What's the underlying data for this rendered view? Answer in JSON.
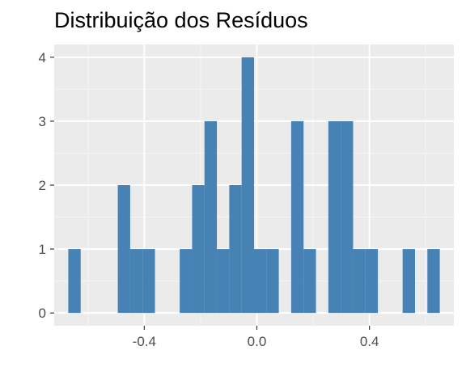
{
  "chart_data": {
    "type": "bar",
    "title": "Distribuição dos Resíduos",
    "xlabel": "",
    "ylabel": "",
    "bin_width": 0.044,
    "bins": [
      {
        "x": -0.648,
        "count": 1
      },
      {
        "x": -0.604,
        "count": 0
      },
      {
        "x": -0.56,
        "count": 0
      },
      {
        "x": -0.516,
        "count": 0
      },
      {
        "x": -0.472,
        "count": 2
      },
      {
        "x": -0.428,
        "count": 1
      },
      {
        "x": -0.384,
        "count": 1
      },
      {
        "x": -0.34,
        "count": 0
      },
      {
        "x": -0.296,
        "count": 0
      },
      {
        "x": -0.252,
        "count": 1
      },
      {
        "x": -0.208,
        "count": 2
      },
      {
        "x": -0.164,
        "count": 3
      },
      {
        "x": -0.12,
        "count": 1
      },
      {
        "x": -0.076,
        "count": 2
      },
      {
        "x": -0.032,
        "count": 4
      },
      {
        "x": 0.012,
        "count": 1
      },
      {
        "x": 0.056,
        "count": 1
      },
      {
        "x": 0.1,
        "count": 0
      },
      {
        "x": 0.144,
        "count": 3
      },
      {
        "x": 0.188,
        "count": 1
      },
      {
        "x": 0.232,
        "count": 0
      },
      {
        "x": 0.276,
        "count": 3
      },
      {
        "x": 0.32,
        "count": 3
      },
      {
        "x": 0.364,
        "count": 1
      },
      {
        "x": 0.408,
        "count": 1
      },
      {
        "x": 0.452,
        "count": 0
      },
      {
        "x": 0.496,
        "count": 0
      },
      {
        "x": 0.54,
        "count": 1
      },
      {
        "x": 0.584,
        "count": 0
      },
      {
        "x": 0.628,
        "count": 1
      }
    ],
    "xlim": [
      -0.72,
      0.7
    ],
    "ylim": [
      -0.2,
      4.2
    ],
    "x_ticks": [
      {
        "value": -0.4,
        "label": "-0.4"
      },
      {
        "value": 0.0,
        "label": "0.0"
      },
      {
        "value": 0.4,
        "label": "0.4"
      }
    ],
    "y_ticks": [
      {
        "value": 0,
        "label": "0"
      },
      {
        "value": 1,
        "label": "1"
      },
      {
        "value": 2,
        "label": "2"
      },
      {
        "value": 3,
        "label": "3"
      },
      {
        "value": 4,
        "label": "4"
      }
    ],
    "grid": true,
    "colors": {
      "bar": "#4682b4",
      "panel": "#ebebeb",
      "grid_major": "#ffffff",
      "grid_minor": "#f5f5f5",
      "tick_text": "#4d4d4d",
      "tick_mark": "#333333"
    }
  }
}
